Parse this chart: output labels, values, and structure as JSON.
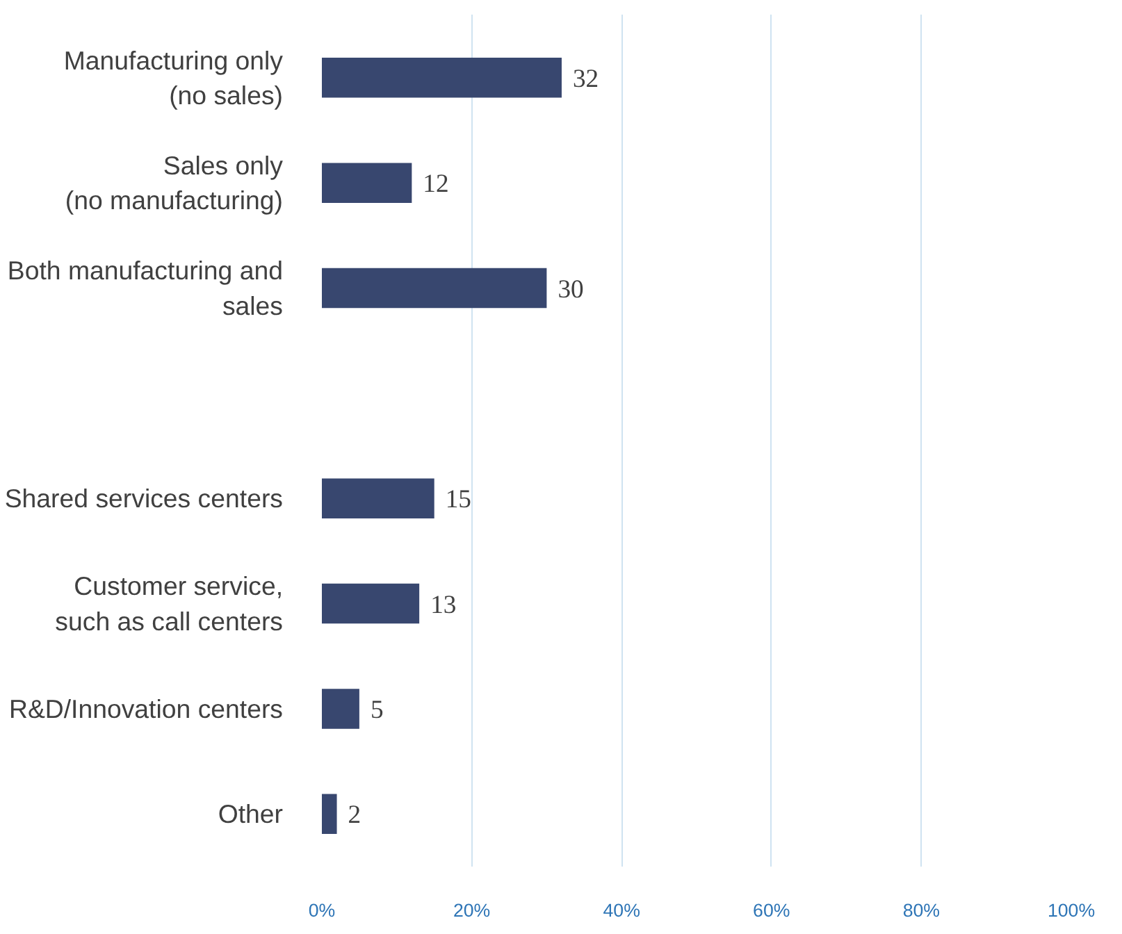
{
  "chart_data": {
    "type": "bar",
    "orientation": "horizontal",
    "categories": [
      "Manufacturing only (no sales)",
      "Sales only (no manufacturing)",
      "Both manufacturing and sales",
      null,
      "Shared services centers",
      "Customer service, such as call centers",
      "R&D/Innovation centers",
      "Other"
    ],
    "values": [
      32,
      12,
      30,
      null,
      15,
      13,
      5,
      2
    ],
    "color": "#38476f",
    "data_labels": true,
    "xlim": [
      0,
      100
    ],
    "xticks": [
      {
        "value": 0,
        "label": "0%"
      },
      {
        "value": 20,
        "label": "20%"
      },
      {
        "value": 40,
        "label": "40%"
      },
      {
        "value": 60,
        "label": "60%"
      },
      {
        "value": 80,
        "label": "80%"
      },
      {
        "value": 100,
        "label": "100%"
      }
    ],
    "grid": "x"
  }
}
